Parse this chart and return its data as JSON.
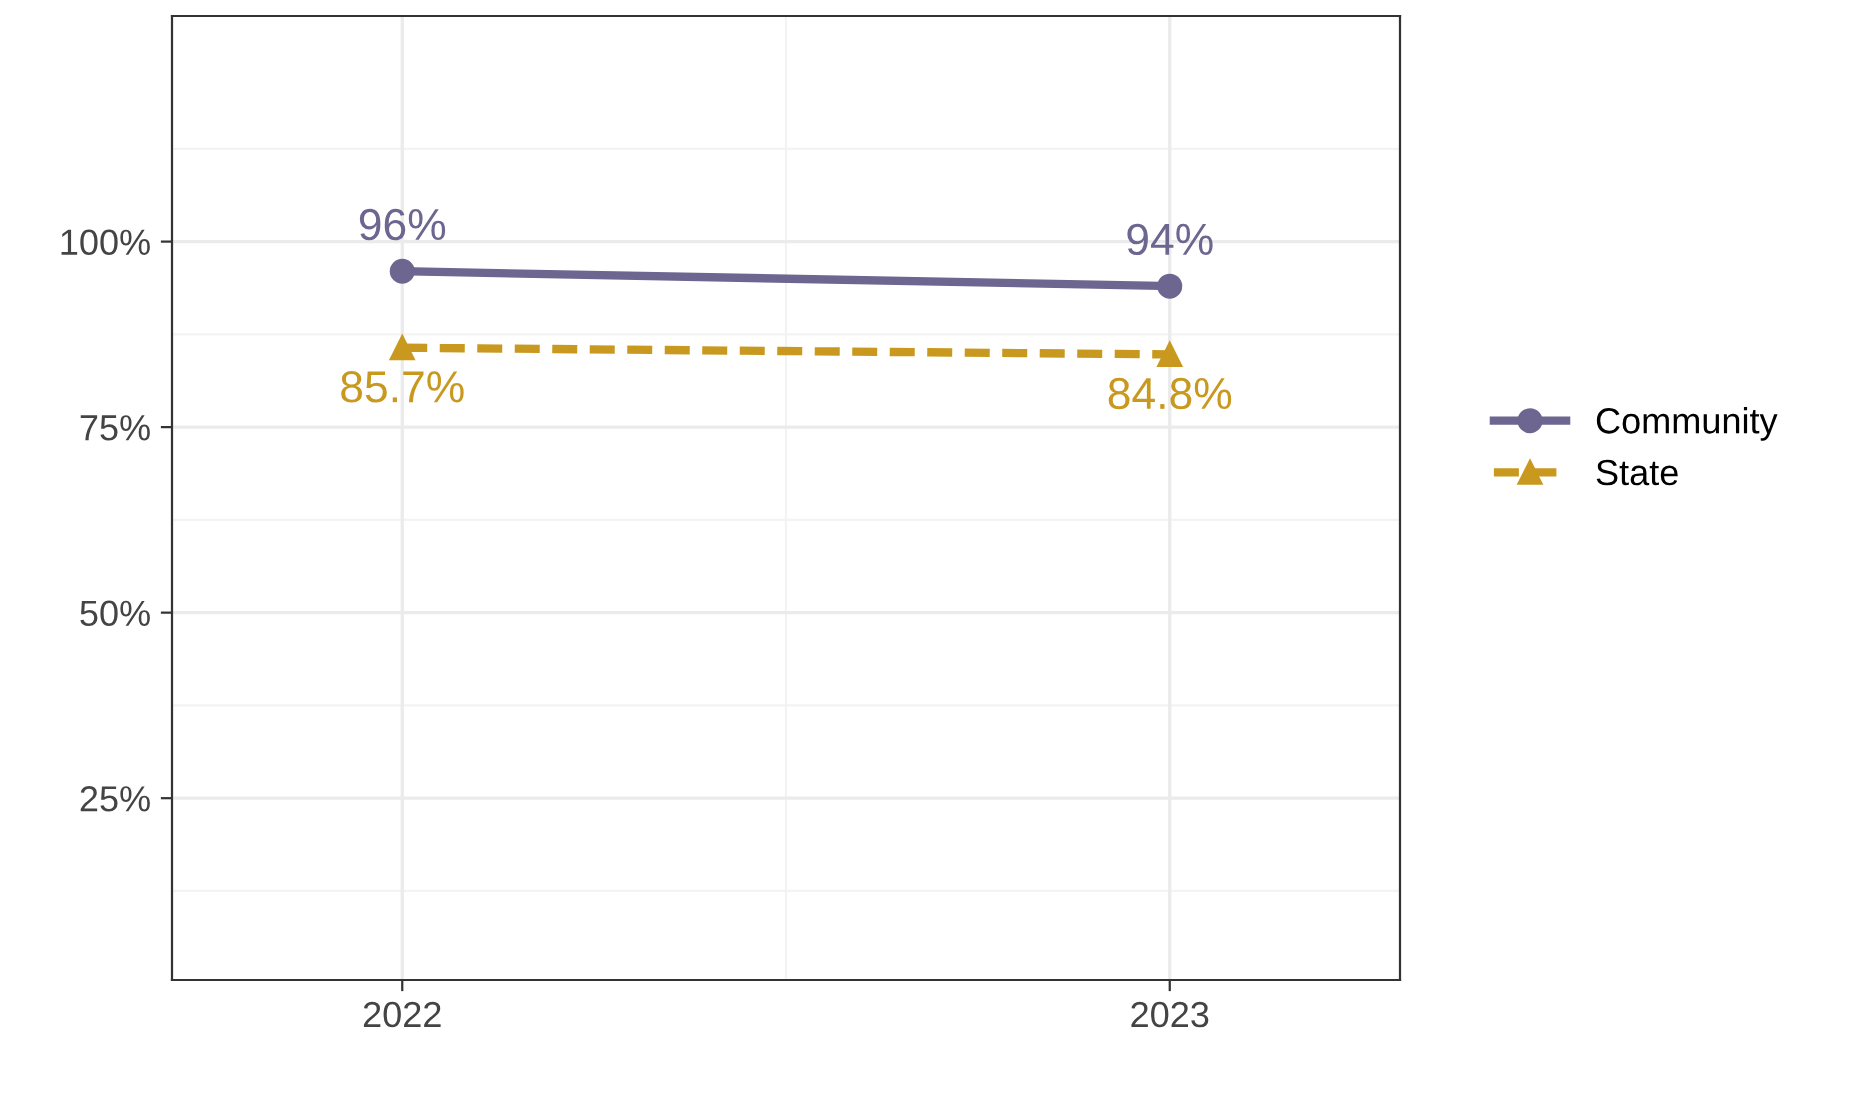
{
  "chart_data": {
    "type": "line",
    "x": [
      2022,
      2023
    ],
    "xlim": [
      2021.7,
      2023.3
    ],
    "xticks": [
      2022,
      2023
    ],
    "series": [
      {
        "name": "Community",
        "color": "#6c6690",
        "values": [
          96,
          94
        ],
        "marker": "circle",
        "line_style": "solid"
      },
      {
        "name": "State",
        "color": "#c9991f",
        "values": [
          85.7,
          84.8
        ],
        "marker": "triangle",
        "line_style": "dashed"
      }
    ],
    "value_labels": [
      [
        "96%",
        "94%"
      ],
      [
        "85.7%",
        "84.8%"
      ]
    ],
    "ylim": [
      0.5,
      130.4
    ],
    "yticks": [
      {
        "value": 25,
        "label": "25%"
      },
      {
        "value": 50,
        "label": "50%"
      },
      {
        "value": 75,
        "label": "75%"
      },
      {
        "value": 100,
        "label": "100%"
      }
    ],
    "grid": true,
    "legend": "right"
  }
}
